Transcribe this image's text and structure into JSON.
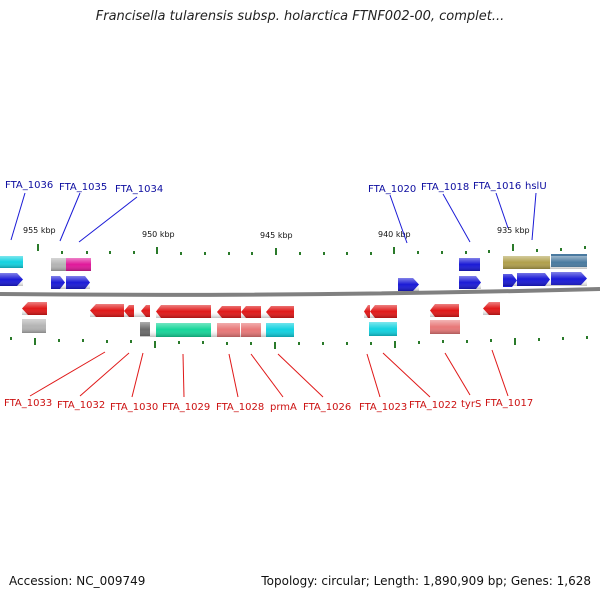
{
  "title": "Francisella tularensis subsp. holarctica FTNF002-00, complet...",
  "footer": {
    "accession": "Accession: NC_009749",
    "summary": "Topology: circular; Length: 1,890,909 bp; Genes: 1,628"
  },
  "scale_labels": [
    "955 kbp",
    "950 kbp",
    "945 kbp",
    "940 kbp",
    "935 kbp"
  ],
  "top_labels": [
    "FTA_1036",
    "FTA_1035",
    "FTA_1034",
    "FTA_1020",
    "FTA_1018",
    "FTA_1016",
    "hslU"
  ],
  "bottom_labels": [
    "FTA_1033",
    "FTA_1032",
    "FTA_1030",
    "FTA_1029",
    "FTA_1028",
    "prmA",
    "FTA_1026",
    "FTA_1023",
    "FTA_1022",
    "tyrS",
    "FTA_1017"
  ],
  "colors": {
    "forward_gene": "#1a1ad6",
    "reverse_gene": "#e01818",
    "backbone": "#808080",
    "tick": "#2a7a2a",
    "cyan": "#12d2e0",
    "magenta": "#e0189a",
    "green": "#16d69a",
    "pink": "#e87878",
    "grey": "#b4b4b4",
    "dark_grey": "#6a6a6a",
    "olive": "#b0a04c",
    "steel": "#4a7aa0"
  }
}
